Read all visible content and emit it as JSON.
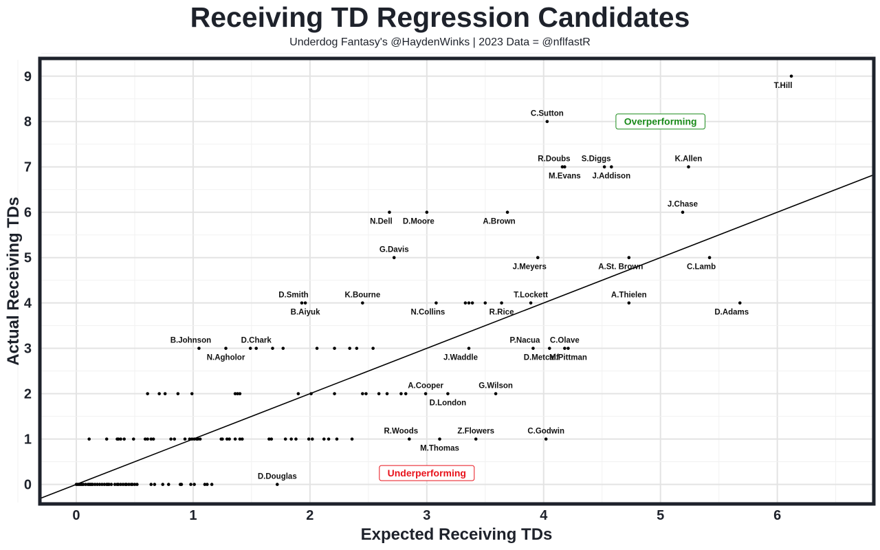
{
  "chart_data": {
    "type": "scatter",
    "title": "Receiving TD Regression Candidates",
    "subtitle": "Underdog Fantasy's @HaydenWinks | 2023 Data = @nflfastR",
    "xlabel": "Expected Receiving TDs",
    "ylabel": "Actual Receiving TDs",
    "xlim": [
      -0.3,
      6.82
    ],
    "ylim": [
      -0.4,
      9.36
    ],
    "xticks": [
      0,
      1,
      2,
      3,
      4,
      5,
      6
    ],
    "yticks": [
      0,
      1,
      2,
      3,
      4,
      5,
      6,
      7,
      8,
      9
    ],
    "grid": true,
    "reference_line": {
      "slope": 1,
      "intercept": 0
    },
    "annotations": [
      {
        "text": "Overperforming",
        "x": 5.0,
        "y": 8,
        "color": "#1a8a1a"
      },
      {
        "text": "Underperforming",
        "x": 3.0,
        "y": 0.25,
        "color": "#e8121b"
      }
    ],
    "labeled_points": [
      {
        "name": "T.Hill",
        "x": 6.12,
        "y": 9,
        "label_pos": "below-left"
      },
      {
        "name": "C.Sutton",
        "x": 4.03,
        "y": 8,
        "label_pos": "above"
      },
      {
        "name": "R.Doubs",
        "x": 4.16,
        "y": 7,
        "label_pos": "above-left"
      },
      {
        "name": "M.Evans",
        "x": 4.18,
        "y": 7,
        "label_pos": "below"
      },
      {
        "name": "S.Diggs",
        "x": 4.52,
        "y": 7,
        "label_pos": "above-left"
      },
      {
        "name": "J.Addison",
        "x": 4.58,
        "y": 7,
        "label_pos": "below"
      },
      {
        "name": "K.Allen",
        "x": 5.24,
        "y": 7,
        "label_pos": "above"
      },
      {
        "name": "J.Chase",
        "x": 5.19,
        "y": 6,
        "label_pos": "above"
      },
      {
        "name": "N.Dell",
        "x": 2.68,
        "y": 6,
        "label_pos": "below-left"
      },
      {
        "name": "D.Moore",
        "x": 3.0,
        "y": 6,
        "label_pos": "below-left"
      },
      {
        "name": "A.Brown",
        "x": 3.69,
        "y": 6,
        "label_pos": "below-left"
      },
      {
        "name": "G.Davis",
        "x": 2.72,
        "y": 5,
        "label_pos": "above"
      },
      {
        "name": "J.Meyers",
        "x": 3.95,
        "y": 5,
        "label_pos": "below-left"
      },
      {
        "name": "A.St. Brown",
        "x": 4.73,
        "y": 5,
        "label_pos": "below-left"
      },
      {
        "name": "C.Lamb",
        "x": 5.42,
        "y": 5,
        "label_pos": "below-left"
      },
      {
        "name": "D.Smith",
        "x": 1.93,
        "y": 4,
        "label_pos": "above-left"
      },
      {
        "name": "B.Aiyuk",
        "x": 1.96,
        "y": 4,
        "label_pos": "below"
      },
      {
        "name": "K.Bourne",
        "x": 2.45,
        "y": 4,
        "label_pos": "above"
      },
      {
        "name": "N.Collins",
        "x": 3.08,
        "y": 4,
        "label_pos": "below-left"
      },
      {
        "name": "R.Rice",
        "x": 3.64,
        "y": 4,
        "label_pos": "below"
      },
      {
        "name": "T.Lockett",
        "x": 3.89,
        "y": 4,
        "label_pos": "above"
      },
      {
        "name": "A.Thielen",
        "x": 4.73,
        "y": 4,
        "label_pos": "above"
      },
      {
        "name": "D.Adams",
        "x": 5.68,
        "y": 4,
        "label_pos": "below-left"
      },
      {
        "name": "B.Johnson",
        "x": 1.05,
        "y": 3,
        "label_pos": "above-left"
      },
      {
        "name": "N.Agholor",
        "x": 1.28,
        "y": 3,
        "label_pos": "below"
      },
      {
        "name": "D.Chark",
        "x": 1.54,
        "y": 3,
        "label_pos": "above"
      },
      {
        "name": "J.Waddle",
        "x": 3.36,
        "y": 3,
        "label_pos": "below-left"
      },
      {
        "name": "P.Nacua",
        "x": 3.91,
        "y": 3,
        "label_pos": "above-left"
      },
      {
        "name": "D.Metcalf",
        "x": 4.05,
        "y": 3,
        "label_pos": "below-left"
      },
      {
        "name": "C.Olave",
        "x": 4.18,
        "y": 3,
        "label_pos": "above"
      },
      {
        "name": "M.Pittman",
        "x": 4.21,
        "y": 3,
        "label_pos": "below"
      },
      {
        "name": "A.Cooper",
        "x": 2.99,
        "y": 2,
        "label_pos": "above"
      },
      {
        "name": "D.London",
        "x": 3.18,
        "y": 2,
        "label_pos": "below"
      },
      {
        "name": "G.Wilson",
        "x": 3.59,
        "y": 2,
        "label_pos": "above"
      },
      {
        "name": "R.Woods",
        "x": 2.85,
        "y": 1,
        "label_pos": "above-left"
      },
      {
        "name": "M.Thomas",
        "x": 3.11,
        "y": 1,
        "label_pos": "below"
      },
      {
        "name": "Z.Flowers",
        "x": 3.42,
        "y": 1,
        "label_pos": "above"
      },
      {
        "name": "C.Godwin",
        "x": 4.02,
        "y": 1,
        "label_pos": "above"
      },
      {
        "name": "D.Douglas",
        "x": 1.72,
        "y": 0,
        "label_pos": "above"
      }
    ],
    "other_points": [
      {
        "y": 4,
        "x": [
          3.33,
          3.36,
          3.39,
          3.5
        ]
      },
      {
        "y": 3,
        "x": [
          1.49,
          1.68,
          1.77,
          2.06,
          2.21,
          2.34,
          2.4,
          2.54
        ]
      },
      {
        "y": 2,
        "x": [
          0.61,
          0.71,
          0.76,
          0.87,
          0.99,
          1.36,
          1.38,
          1.4,
          1.9,
          2.01,
          2.21,
          2.45,
          2.48,
          2.59,
          2.66,
          2.78,
          2.82
        ]
      },
      {
        "y": 1,
        "x": [
          0.11,
          0.26,
          0.35,
          0.36,
          0.38,
          0.41,
          0.49,
          0.59,
          0.61,
          0.64,
          0.66,
          0.81,
          0.84,
          0.93,
          0.97,
          0.99,
          1.01,
          1.03,
          1.04,
          1.06,
          1.24,
          1.25,
          1.29,
          1.31,
          1.36,
          1.4,
          1.42,
          1.65,
          1.67,
          1.79,
          1.84,
          1.88,
          1.99,
          2.02,
          2.12,
          2.16,
          2.23,
          2.36
        ]
      },
      {
        "y": 0,
        "x": [
          0.0,
          0.01,
          0.02,
          0.03,
          0.04,
          0.05,
          0.06,
          0.08,
          0.1,
          0.11,
          0.12,
          0.13,
          0.14,
          0.16,
          0.18,
          0.2,
          0.22,
          0.24,
          0.26,
          0.27,
          0.28,
          0.3,
          0.33,
          0.35,
          0.36,
          0.38,
          0.4,
          0.42,
          0.43,
          0.45,
          0.47,
          0.48,
          0.5,
          0.52,
          0.64,
          0.67,
          0.74,
          0.79,
          0.89,
          0.9,
          0.98,
          1.01,
          1.1,
          1.12,
          1.16
        ]
      }
    ]
  }
}
